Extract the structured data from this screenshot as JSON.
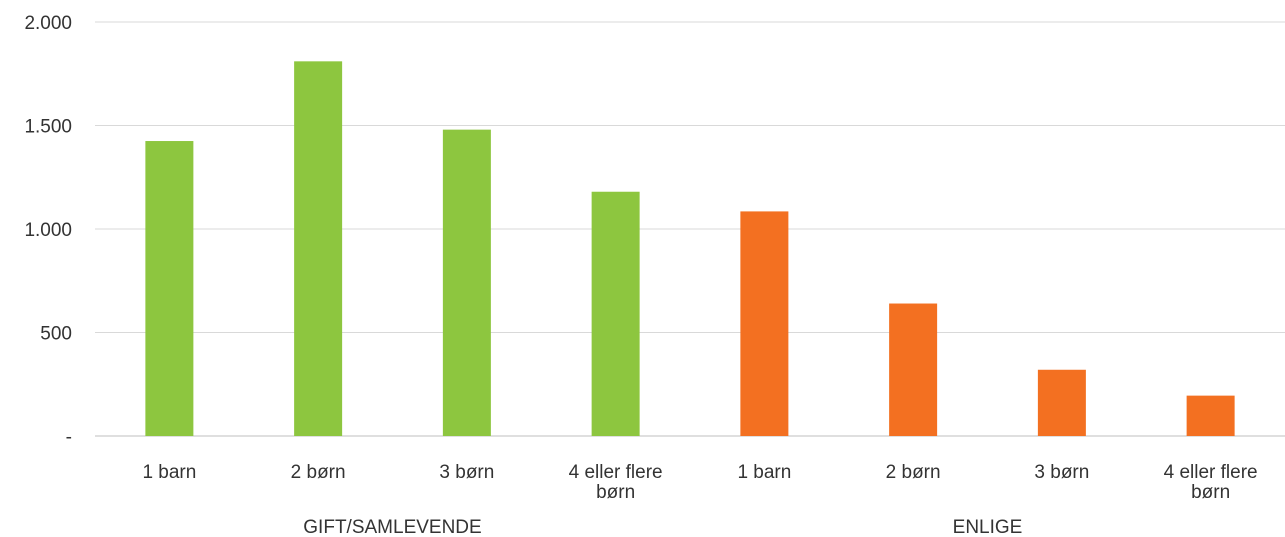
{
  "chart_data": {
    "type": "bar",
    "groups": [
      {
        "label": "GIFT/SAMLEVENDE",
        "color": "#8DC63F",
        "categories": [
          "1 barn",
          "2 børn",
          "3 børn",
          "4 eller flere børn"
        ],
        "values": [
          1425,
          1810,
          1480,
          1180
        ]
      },
      {
        "label": "ENLIGE",
        "color": "#F37021",
        "categories": [
          "1 barn",
          "2 børn",
          "3 børn",
          "4 eller flere børn"
        ],
        "values": [
          1085,
          640,
          320,
          195
        ]
      }
    ],
    "y_ticks": [
      "-",
      "500",
      "1.000",
      "1.500",
      "2.000"
    ],
    "y_tick_values": [
      0,
      500,
      1000,
      1500,
      2000
    ],
    "ylim": [
      0,
      2000
    ],
    "grid": true,
    "gridline_color": "#d9d9d9"
  }
}
